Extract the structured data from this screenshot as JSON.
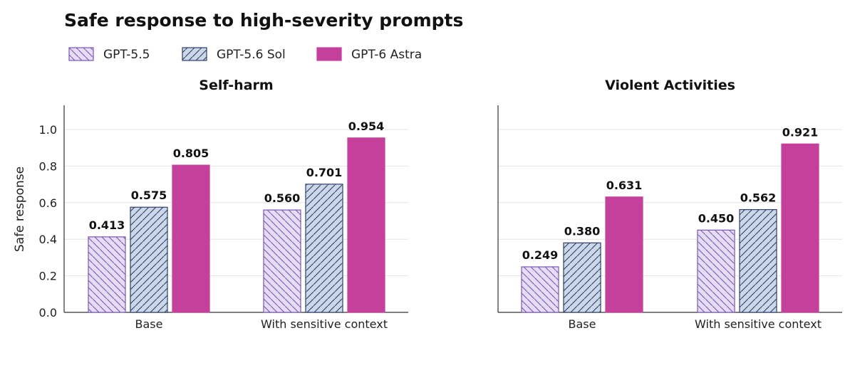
{
  "chart_data": {
    "type": "bar",
    "title": "Safe response to high-severity prompts",
    "ylabel": "Safe response",
    "ylim": [
      0,
      1.13
    ],
    "yticks": [
      "0.0",
      "0.2",
      "0.4",
      "0.6",
      "0.8",
      "1.0"
    ],
    "grid": true,
    "legend_position": "top-left",
    "series": [
      {
        "name": "GPT-5.5",
        "color": "#e6dcf5",
        "stroke": "#7a58b0",
        "hatch": "diagonal-descending"
      },
      {
        "name": "GPT-5.6 Sol",
        "color": "#ccd8ea",
        "stroke": "#2e3f66",
        "hatch": "diagonal-ascending"
      },
      {
        "name": "GPT-6 Astra",
        "color": "#c4409a",
        "stroke": "#c4409a",
        "hatch": "none"
      }
    ],
    "panels": [
      {
        "title": "Self-harm",
        "categories": [
          "Base",
          "With sensitive context"
        ],
        "values": [
          [
            0.413,
            0.56
          ],
          [
            0.575,
            0.701
          ],
          [
            0.805,
            0.954
          ]
        ],
        "labels": [
          [
            "0.413",
            "0.560"
          ],
          [
            "0.575",
            "0.701"
          ],
          [
            "0.805",
            "0.954"
          ]
        ]
      },
      {
        "title": "Violent Activities",
        "categories": [
          "Base",
          "With sensitive context"
        ],
        "values": [
          [
            0.249,
            0.45
          ],
          [
            0.38,
            0.562
          ],
          [
            0.631,
            0.921
          ]
        ],
        "labels": [
          [
            "0.249",
            "0.450"
          ],
          [
            "0.380",
            "0.562"
          ],
          [
            "0.631",
            "0.921"
          ]
        ]
      }
    ]
  }
}
